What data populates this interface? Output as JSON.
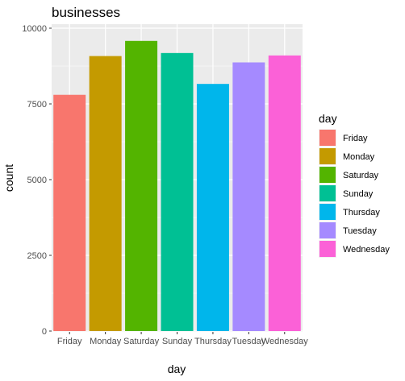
{
  "chart_data": {
    "type": "bar",
    "title": "businesses",
    "xlabel": "day",
    "ylabel": "count",
    "categories": [
      "Friday",
      "Monday",
      "Saturday",
      "Sunday",
      "Thursday",
      "Tuesday",
      "Wednesday"
    ],
    "values": [
      7800,
      9080,
      9580,
      9180,
      8160,
      8870,
      9100
    ],
    "colors": [
      "#F8766D",
      "#C49A00",
      "#53B400",
      "#00C094",
      "#00B6EB",
      "#A58AFF",
      "#FB61D7"
    ],
    "ylim": [
      0,
      10000
    ],
    "yticks": [
      0,
      2500,
      5000,
      7500,
      10000
    ],
    "ytick_labels": [
      "0",
      "2500",
      "5000",
      "7500",
      "10000"
    ],
    "grid": true,
    "background": "#EBEBEB",
    "legend": {
      "title": "day",
      "placement": "right"
    }
  }
}
